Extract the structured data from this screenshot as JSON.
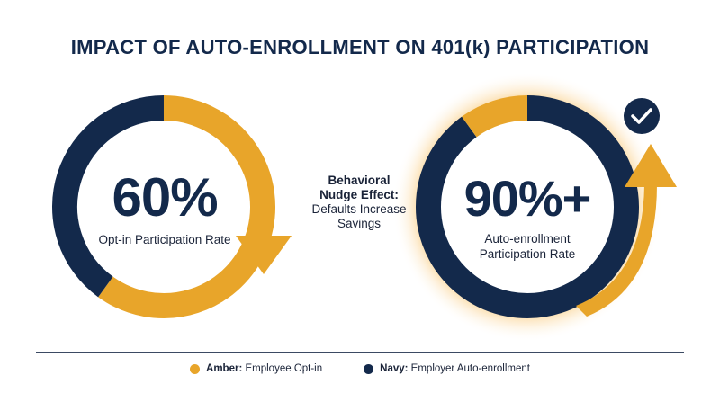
{
  "title": "IMPACT OF AUTO-ENROLLMENT ON 401(k) PARTICIPATION",
  "colors": {
    "amber": "#e8a52a",
    "navy": "#13294b"
  },
  "chart_data": [
    {
      "type": "donut",
      "value_label": "60%",
      "value": 60,
      "label": "Opt-in Participation Rate",
      "segments": [
        {
          "series": "Amber",
          "value": 60
        },
        {
          "series": "Navy",
          "value": 40
        }
      ]
    },
    {
      "type": "donut",
      "value_label": "90%+",
      "value": 90,
      "label": "Auto-enrollment Participation Rate",
      "segments": [
        {
          "series": "Navy",
          "value": 90
        },
        {
          "series": "Amber",
          "value": 10
        }
      ]
    }
  ],
  "middle": {
    "bold_line1": "Behavioral",
    "bold_line2": "Nudge Effect:",
    "line3": "Defaults Increase",
    "line4": "Savings"
  },
  "legend": [
    {
      "key": "Amber:",
      "text": "Employee Opt-in",
      "color": "#e8a52a"
    },
    {
      "key": "Navy:",
      "text": "Employer Auto-enrollment",
      "color": "#13294b"
    }
  ],
  "icons": {
    "badge": "check-icon"
  }
}
